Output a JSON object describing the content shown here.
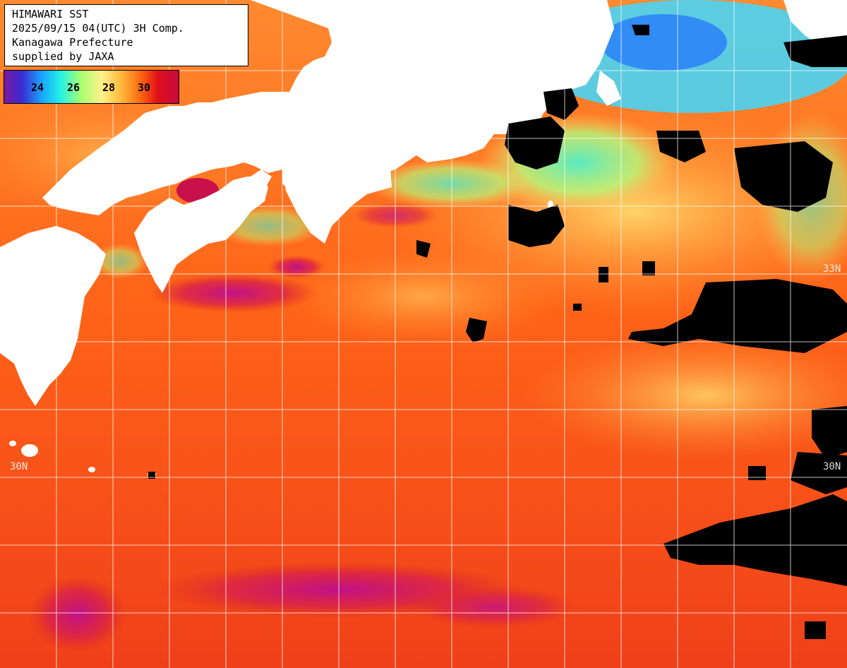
{
  "title_box": {
    "line1": "HIMAWARI SST",
    "line2": "2025/09/15 04(UTC) 3H Comp.",
    "line3": "Kanagawa Prefecture",
    "line4": "supplied by JAXA"
  },
  "colorbar": {
    "ticks": [
      "24",
      "26",
      "28",
      "30"
    ]
  },
  "lat_labels": {
    "left_30": "30N",
    "right_30": "30N",
    "right_33": "33N"
  },
  "colors": {
    "land": "#ffffff",
    "cloud_mask": "#000000",
    "grid": "#ffffff",
    "warm": "#ff5a10",
    "hot": "#c8147a",
    "cool": "#60f0b0"
  }
}
